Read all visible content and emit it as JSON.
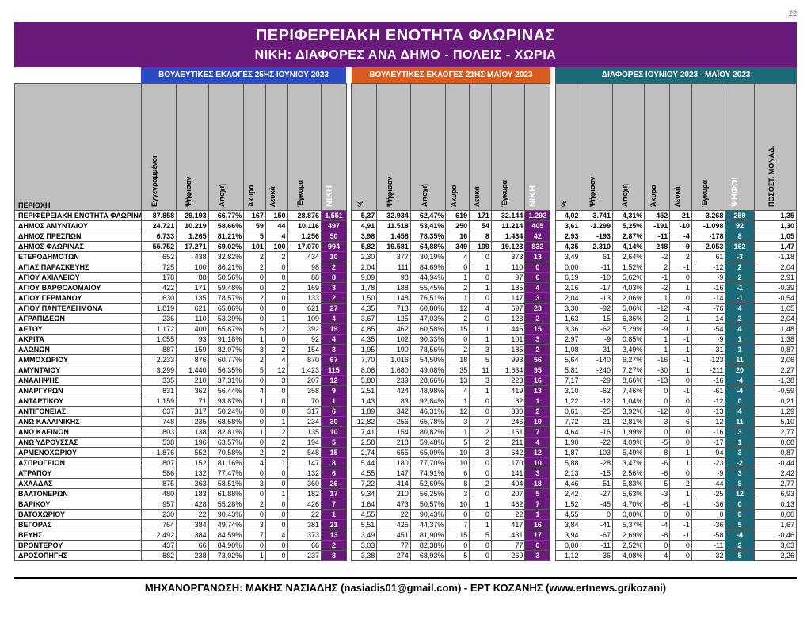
{
  "page_number": "22",
  "titles": {
    "main": "ΠΕΡΙΦΕΡΕΙΑΚΗ ΕΝΟΤΗΤΑ ΦΛΩΡΙΝΑΣ",
    "sub": "ΝΙΚΗ: ΔΙΑΦΟΡΕΣ ΑΝΑ ΔΗΜΟ - ΠΟΛΕΙΣ - ΧΩΡΙΑ"
  },
  "groups": {
    "june": {
      "label": "ΒΟΥΛΕΥΤΙΚΕΣ ΕΚΛΟΓΕΣ 25ΗΣ ΙΟΥΝΙΟΥ 2023",
      "bg": "#2a4cc0"
    },
    "may": {
      "label": "ΒΟΥΛΕΥΤΙΚΕΣ ΕΚΛΟΓΕΣ 21ΗΣ ΜΑΪΟΥ 2023",
      "bg": "#d95b1f"
    },
    "diff": {
      "label": "ΔΙΑΦΟΡΕΣ ΙΟΥΝΙΟΥ 2023 - ΜΑΪΟΥ 2023",
      "bg": "#1d6a78"
    }
  },
  "colors": {
    "title_bg": "#6a1a7a",
    "niki_bg": "#6a1a7a",
    "psifoi_bg": "#1d6a78",
    "header_bg": "#bfbfbf",
    "page_bg": "#ffffff"
  },
  "columns": {
    "region": "ΠΕΡΙΟΧΗ",
    "june": [
      "Εγγεγραμμένοι",
      "Ψήφισαν",
      "Αποχή",
      "Άκυρα",
      "Λευκά",
      "Έγκυρα",
      "ΝΙΚΗ"
    ],
    "may": [
      "%",
      "Ψήφισαν",
      "Αποχή",
      "Άκυρα",
      "Λευκά",
      "Έγκυρα",
      "ΝΙΚΗ"
    ],
    "diff": [
      "%",
      "Ψήφισαν",
      "Αποχή",
      "Άκυρα",
      "Λευκά",
      "Έγκυρα",
      "ΨΗΦΟΙ",
      "ΠΟΣΟΣΤ. ΜΟΝΑΔ."
    ]
  },
  "col_widths": {
    "region": 150,
    "june": [
      42,
      38,
      42,
      26,
      26,
      40,
      30
    ],
    "spacer": 6,
    "may": [
      30,
      40,
      42,
      28,
      26,
      40,
      30
    ],
    "diff": [
      30,
      38,
      38,
      30,
      26,
      40,
      34,
      50
    ]
  },
  "rows": [
    {
      "bold": true,
      "region": "ΠΕΡΙΦΕΡΕΙΑΚΗ ΕΝΟΤΗΤΑ ΦΛΩΡΙΝΑΣ",
      "june": [
        "87.858",
        "29.193",
        "66,77%",
        "167",
        "150",
        "28.876",
        "1.551"
      ],
      "may": [
        "5,37",
        "32.934",
        "62,47%",
        "619",
        "171",
        "32.144",
        "1.292"
      ],
      "diff": [
        "4,02",
        "-3.741",
        "4,31%",
        "-452",
        "-21",
        "-3.268",
        "259",
        "1,35"
      ]
    },
    {
      "bold": true,
      "region": "ΔΗΜΟΣ ΑΜΥΝΤΑΙΟΥ",
      "june": [
        "24.721",
        "10.219",
        "58,66%",
        "59",
        "44",
        "10.116",
        "497"
      ],
      "may": [
        "4,91",
        "11.518",
        "53,41%",
        "250",
        "54",
        "11.214",
        "405"
      ],
      "diff": [
        "3,61",
        "-1.299",
        "5,25%",
        "-191",
        "-10",
        "-1.098",
        "92",
        "1,30"
      ]
    },
    {
      "bold": true,
      "region": "ΔΗΜΟΣ ΠΡΕΣΠΩΝ",
      "june": [
        "6.733",
        "1.265",
        "81,21%",
        "5",
        "4",
        "1.256",
        "50"
      ],
      "may": [
        "3,98",
        "1.458",
        "78,35%",
        "16",
        "8",
        "1.434",
        "42"
      ],
      "diff": [
        "2,93",
        "-193",
        "2,87%",
        "-11",
        "-4",
        "-178",
        "8",
        "1,05"
      ]
    },
    {
      "bold": true,
      "region": "ΔΗΜΟΣ ΦΛΩΡΙΝΑΣ",
      "june": [
        "55.752",
        "17.271",
        "69,02%",
        "101",
        "100",
        "17.070",
        "994"
      ],
      "may": [
        "5,82",
        "19.581",
        "64,88%",
        "349",
        "109",
        "19.123",
        "832"
      ],
      "diff": [
        "4,35",
        "-2.310",
        "4,14%",
        "-248",
        "-9",
        "-2.053",
        "162",
        "1,47"
      ]
    },
    {
      "region": "ΕΤΕΡΟΔΗΜΟΤΩN",
      "june": [
        "652",
        "438",
        "32,82%",
        "2",
        "2",
        "434",
        "10"
      ],
      "may": [
        "2,30",
        "377",
        "30,19%",
        "4",
        "0",
        "373",
        "13"
      ],
      "diff": [
        "3,49",
        "61",
        "2,64%",
        "-2",
        "2",
        "61",
        "-3",
        "-1,18"
      ]
    },
    {
      "region": "ΑΓΙΑΣ ΠΑΡΑΣΚΕΥΗΣ",
      "june": [
        "725",
        "100",
        "86,21%",
        "2",
        "0",
        "98",
        "2"
      ],
      "may": [
        "2,04",
        "111",
        "84,69%",
        "0",
        "1",
        "110",
        "0"
      ],
      "diff": [
        "0,00",
        "-11",
        "1,52%",
        "2",
        "-1",
        "-12",
        "2",
        "2,04"
      ]
    },
    {
      "region": "ΑΓΙΟΥ ΑΧΙΛΛΕΙΟΥ",
      "june": [
        "178",
        "88",
        "50,56%",
        "0",
        "0",
        "88",
        "8"
      ],
      "may": [
        "9,09",
        "98",
        "44,94%",
        "1",
        "0",
        "97",
        "6"
      ],
      "diff": [
        "6,19",
        "-10",
        "5,62%",
        "-1",
        "0",
        "-9",
        "2",
        "2,91"
      ]
    },
    {
      "region": "ΑΓΙΟΥ ΒΑΡΘΟΛΟΜΑΙΟΥ",
      "june": [
        "422",
        "171",
        "59,48%",
        "0",
        "2",
        "169",
        "3"
      ],
      "may": [
        "1,78",
        "188",
        "55,45%",
        "2",
        "1",
        "185",
        "4"
      ],
      "diff": [
        "2,16",
        "-17",
        "4,03%",
        "-2",
        "1",
        "-16",
        "-1",
        "-0,39"
      ]
    },
    {
      "region": "ΑΓΙΟΥ ΓΕΡΜΑΝΟΥ",
      "june": [
        "630",
        "135",
        "78,57%",
        "2",
        "0",
        "133",
        "2"
      ],
      "may": [
        "1,50",
        "148",
        "76,51%",
        "1",
        "0",
        "147",
        "3"
      ],
      "diff": [
        "2,04",
        "-13",
        "2,06%",
        "1",
        "0",
        "-14",
        "-1",
        "-0,54"
      ]
    },
    {
      "region": "ΑΓΙΟΥ ΠΑΝΤΕΛΕΗΜΟΝΑ",
      "june": [
        "1.819",
        "621",
        "65,86%",
        "0",
        "0",
        "621",
        "27"
      ],
      "may": [
        "4,35",
        "713",
        "60,80%",
        "12",
        "4",
        "697",
        "23"
      ],
      "diff": [
        "3,30",
        "-92",
        "5,06%",
        "-12",
        "-4",
        "-76",
        "4",
        "1,05"
      ]
    },
    {
      "region": "ΑΓΡΑΠΙΔΕΩΝ",
      "june": [
        "236",
        "110",
        "53,39%",
        "0",
        "1",
        "109",
        "4"
      ],
      "may": [
        "3,67",
        "125",
        "47,03%",
        "2",
        "0",
        "123",
        "2"
      ],
      "diff": [
        "1,63",
        "-15",
        "6,36%",
        "-2",
        "1",
        "-14",
        "2",
        "2,04"
      ]
    },
    {
      "region": "ΑΕΤΟΥ",
      "june": [
        "1.172",
        "400",
        "65,87%",
        "6",
        "2",
        "392",
        "19"
      ],
      "may": [
        "4,85",
        "462",
        "60,58%",
        "15",
        "1",
        "446",
        "15"
      ],
      "diff": [
        "3,36",
        "-62",
        "5,29%",
        "-9",
        "1",
        "-54",
        "4",
        "1,48"
      ]
    },
    {
      "region": "ΑΚΡΙΤΑ",
      "june": [
        "1.055",
        "93",
        "91,18%",
        "1",
        "0",
        "92",
        "4"
      ],
      "may": [
        "4,35",
        "102",
        "90,33%",
        "0",
        "1",
        "101",
        "3"
      ],
      "diff": [
        "2,97",
        "-9",
        "0,85%",
        "1",
        "-1",
        "-9",
        "1",
        "1,38"
      ]
    },
    {
      "region": "ΑΛΩΝΩΝ",
      "june": [
        "887",
        "159",
        "82,07%",
        "3",
        "2",
        "154",
        "3"
      ],
      "may": [
        "1,95",
        "190",
        "78,56%",
        "2",
        "3",
        "185",
        "2"
      ],
      "diff": [
        "1,08",
        "-31",
        "3,49%",
        "1",
        "-1",
        "-31",
        "1",
        "0,87"
      ]
    },
    {
      "region": "ΑΜΜΟΧΩΡΙΟΥ",
      "june": [
        "2.233",
        "876",
        "60,77%",
        "2",
        "4",
        "870",
        "67"
      ],
      "may": [
        "7,70",
        "1.016",
        "54,50%",
        "18",
        "5",
        "993",
        "56"
      ],
      "diff": [
        "5,64",
        "-140",
        "6,27%",
        "-16",
        "-1",
        "-123",
        "11",
        "2,06"
      ]
    },
    {
      "region": "ΑΜΥΝΤΑΙΟΥ",
      "june": [
        "3.299",
        "1.440",
        "56,35%",
        "5",
        "12",
        "1.423",
        "115"
      ],
      "may": [
        "8,08",
        "1.680",
        "49,08%",
        "35",
        "11",
        "1.634",
        "95"
      ],
      "diff": [
        "5,81",
        "-240",
        "7,27%",
        "-30",
        "1",
        "-211",
        "20",
        "2,27"
      ]
    },
    {
      "region": "ΑΝΑΛΗΨΗΣ",
      "june": [
        "335",
        "210",
        "37,31%",
        "0",
        "3",
        "207",
        "12"
      ],
      "may": [
        "5,80",
        "239",
        "28,66%",
        "13",
        "3",
        "223",
        "16"
      ],
      "diff": [
        "7,17",
        "-29",
        "8,66%",
        "-13",
        "0",
        "-16",
        "-4",
        "-1,38"
      ]
    },
    {
      "region": "ΑΝΑΡΓΥΡΩΝ",
      "june": [
        "831",
        "362",
        "56,44%",
        "4",
        "0",
        "358",
        "9"
      ],
      "may": [
        "2,51",
        "424",
        "48,98%",
        "4",
        "1",
        "419",
        "13"
      ],
      "diff": [
        "3,10",
        "-62",
        "7,46%",
        "0",
        "-1",
        "-61",
        "-4",
        "-0,59"
      ]
    },
    {
      "region": "ΑΝΤΑΡΤΙΚΟΥ",
      "june": [
        "1.159",
        "71",
        "93,87%",
        "1",
        "0",
        "70",
        "1"
      ],
      "may": [
        "1,43",
        "83",
        "92,84%",
        "1",
        "0",
        "82",
        "1"
      ],
      "diff": [
        "1,22",
        "-12",
        "1,04%",
        "0",
        "0",
        "-12",
        "0",
        "0,21"
      ]
    },
    {
      "region": "ΑΝΤΙΓΟΝΕΙΑΣ",
      "june": [
        "637",
        "317",
        "50,24%",
        "0",
        "0",
        "317",
        "6"
      ],
      "may": [
        "1,89",
        "342",
        "46,31%",
        "12",
        "0",
        "330",
        "2"
      ],
      "diff": [
        "0,61",
        "-25",
        "3,92%",
        "-12",
        "0",
        "-13",
        "4",
        "1,29"
      ]
    },
    {
      "region": "ΑΝΩ ΚΑΛΛΙΝΙΚΗΣ",
      "june": [
        "748",
        "235",
        "68,58%",
        "0",
        "1",
        "234",
        "30"
      ],
      "may": [
        "12,82",
        "256",
        "65,78%",
        "3",
        "7",
        "246",
        "19"
      ],
      "diff": [
        "7,72",
        "-21",
        "2,81%",
        "-3",
        "-6",
        "-12",
        "11",
        "5,10"
      ]
    },
    {
      "region": "ΑΝΩ ΚΛΕΙΝΩΝ",
      "june": [
        "803",
        "138",
        "82,81%",
        "1",
        "2",
        "135",
        "10"
      ],
      "may": [
        "7,41",
        "154",
        "80,82%",
        "1",
        "2",
        "151",
        "7"
      ],
      "diff": [
        "4,64",
        "-16",
        "1,99%",
        "0",
        "0",
        "-16",
        "3",
        "2,77"
      ]
    },
    {
      "region": "ΑΝΩ ΥΔΡΟΥΣΣΑΣ",
      "june": [
        "538",
        "196",
        "63,57%",
        "0",
        "2",
        "194",
        "5"
      ],
      "may": [
        "2,58",
        "218",
        "59,48%",
        "5",
        "2",
        "211",
        "4"
      ],
      "diff": [
        "1,90",
        "-22",
        "4,09%",
        "-5",
        "0",
        "-17",
        "1",
        "0,68"
      ]
    },
    {
      "region": "ΑΡΜΕΝΟΧΩΡΙΟΥ",
      "june": [
        "1.876",
        "552",
        "70,58%",
        "2",
        "2",
        "548",
        "15"
      ],
      "may": [
        "2,74",
        "655",
        "65,09%",
        "10",
        "3",
        "642",
        "12"
      ],
      "diff": [
        "1,87",
        "-103",
        "5,49%",
        "-8",
        "-1",
        "-94",
        "3",
        "0,87"
      ]
    },
    {
      "region": "ΑΣΠΡΟΓΕΙΩΝ",
      "june": [
        "807",
        "152",
        "81,16%",
        "4",
        "1",
        "147",
        "8"
      ],
      "may": [
        "5,44",
        "180",
        "77,70%",
        "10",
        "0",
        "170",
        "10"
      ],
      "diff": [
        "5,88",
        "-28",
        "3,47%",
        "-6",
        "1",
        "-23",
        "-2",
        "-0,44"
      ]
    },
    {
      "region": "ΑΤΡΑΠΟΥ",
      "june": [
        "586",
        "132",
        "77,47%",
        "0",
        "0",
        "132",
        "6"
      ],
      "may": [
        "4,55",
        "147",
        "74,91%",
        "6",
        "0",
        "141",
        "3"
      ],
      "diff": [
        "2,13",
        "-15",
        "2,56%",
        "-6",
        "0",
        "-9",
        "3",
        "2,42"
      ]
    },
    {
      "region": "ΑΧΛΑΔΑΣ",
      "june": [
        "875",
        "363",
        "58,51%",
        "3",
        "0",
        "360",
        "26"
      ],
      "may": [
        "7,22",
        "414",
        "52,69%",
        "8",
        "2",
        "404",
        "18"
      ],
      "diff": [
        "4,46",
        "-51",
        "5,83%",
        "-5",
        "-2",
        "-44",
        "8",
        "2,77"
      ]
    },
    {
      "region": "ΒΑΛΤΟΝΕΡΩΝ",
      "june": [
        "480",
        "183",
        "61,88%",
        "0",
        "1",
        "182",
        "17"
      ],
      "may": [
        "9,34",
        "210",
        "56,25%",
        "3",
        "0",
        "207",
        "5"
      ],
      "diff": [
        "2,42",
        "-27",
        "5,63%",
        "-3",
        "1",
        "-25",
        "12",
        "6,93"
      ]
    },
    {
      "region": "ΒΑΡΙΚΟΥ",
      "june": [
        "957",
        "428",
        "55,28%",
        "2",
        "0",
        "426",
        "7"
      ],
      "may": [
        "1,64",
        "473",
        "50,57%",
        "10",
        "1",
        "462",
        "7"
      ],
      "diff": [
        "1,52",
        "-45",
        "4,70%",
        "-8",
        "-1",
        "-36",
        "0",
        "0,13"
      ]
    },
    {
      "region": "ΒΑΤΟΧΩΡΙΟΥ",
      "june": [
        "230",
        "22",
        "90,43%",
        "0",
        "0",
        "22",
        "1"
      ],
      "may": [
        "4,55",
        "22",
        "90,43%",
        "0",
        "0",
        "22",
        "1"
      ],
      "diff": [
        "4,55",
        "0",
        "0,00%",
        "0",
        "0",
        "0",
        "0",
        "0,00"
      ]
    },
    {
      "region": "ΒΕΓΟΡΑΣ",
      "june": [
        "764",
        "384",
        "49,74%",
        "3",
        "0",
        "381",
        "21"
      ],
      "may": [
        "5,51",
        "425",
        "44,37%",
        "7",
        "1",
        "417",
        "16"
      ],
      "diff": [
        "3,84",
        "-41",
        "5,37%",
        "-4",
        "-1",
        "-36",
        "5",
        "1,67"
      ]
    },
    {
      "region": "ΒΕΥΗΣ",
      "june": [
        "2.492",
        "384",
        "84,59%",
        "7",
        "4",
        "373",
        "13"
      ],
      "may": [
        "3,49",
        "451",
        "81,90%",
        "15",
        "5",
        "431",
        "17"
      ],
      "diff": [
        "3,94",
        "-67",
        "2,69%",
        "-8",
        "-1",
        "-58",
        "-4",
        "-0,46"
      ]
    },
    {
      "region": "ΒΡΟΝΤΕΡΟΥ",
      "june": [
        "437",
        "66",
        "84,90%",
        "0",
        "0",
        "66",
        "2"
      ],
      "may": [
        "3,03",
        "77",
        "82,38%",
        "0",
        "0",
        "77",
        "0"
      ],
      "diff": [
        "0,00",
        "-11",
        "2,52%",
        "0",
        "0",
        "-11",
        "2",
        "3,03"
      ]
    },
    {
      "region": "ΔΡΟΣΟΠΗΓΗΣ",
      "june": [
        "882",
        "238",
        "73,02%",
        "1",
        "0",
        "237",
        "8"
      ],
      "may": [
        "3,38",
        "274",
        "68,93%",
        "5",
        "0",
        "269",
        "3"
      ],
      "diff": [
        "1,12",
        "-36",
        "4,08%",
        "-4",
        "0",
        "-32",
        "5",
        "2,26"
      ]
    }
  ],
  "footer": "ΜΗΧΑΝΟΡΓΑΝΩΣΗ: ΜΑΚΗΣ ΝΑΣΙΑΔΗΣ (nasiadis01@gmail.com) - ΕΡΤ ΚΟΖΑΝΗΣ (www.ertnews.gr/kozani)"
}
